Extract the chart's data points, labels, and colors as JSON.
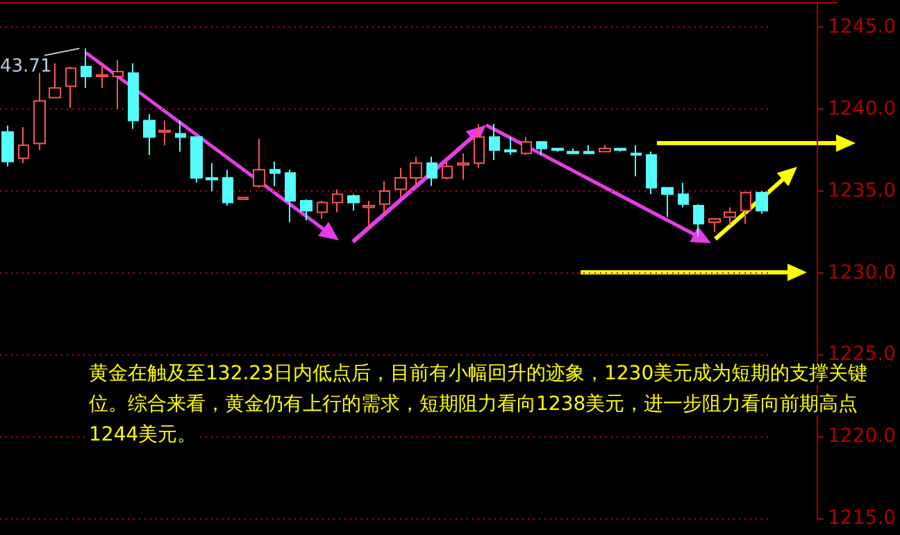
{
  "chart_data": {
    "type": "candlestick",
    "categories": [
      null,
      null,
      null,
      null,
      null,
      null,
      null,
      null,
      null,
      null,
      null,
      null,
      null,
      null,
      null,
      null,
      null,
      null,
      null,
      null,
      null,
      null,
      null,
      null,
      null,
      null,
      null,
      null,
      null,
      null,
      null,
      null,
      null,
      null,
      null,
      null,
      null,
      null,
      null,
      null,
      null,
      null,
      null,
      null,
      null,
      null,
      null,
      null,
      null
    ],
    "ohlc": [
      [
        1238.6,
        1239.0,
        1236.5,
        1236.8
      ],
      [
        1237.0,
        1238.9,
        1236.7,
        1237.8
      ],
      [
        1237.9,
        1242.2,
        1237.5,
        1240.5
      ],
      [
        1240.7,
        1242.8,
        1240.7,
        1241.3
      ],
      [
        1241.4,
        1242.6,
        1240.1,
        1242.5
      ],
      [
        1242.6,
        1243.71,
        1241.3,
        1242.0
      ],
      [
        1242.0,
        1242.8,
        1241.3,
        1242.1
      ],
      [
        1242.0,
        1243.0,
        1240.0,
        1242.3
      ],
      [
        1242.2,
        1242.8,
        1238.8,
        1239.3
      ],
      [
        1239.3,
        1239.7,
        1237.2,
        1238.3
      ],
      [
        1238.6,
        1239.3,
        1237.8,
        1238.7
      ],
      [
        1238.5,
        1239.3,
        1237.4,
        1238.3
      ],
      [
        1238.3,
        1238.3,
        1235.5,
        1235.8
      ],
      [
        1235.8,
        1236.7,
        1235.0,
        1235.7
      ],
      [
        1235.8,
        1236.3,
        1234.1,
        1234.3
      ],
      [
        1234.5,
        1234.6,
        1234.5,
        1234.6
      ],
      [
        1235.3,
        1238.2,
        1235.2,
        1236.3
      ],
      [
        1236.3,
        1236.8,
        1235.3,
        1236.1
      ],
      [
        1236.1,
        1236.3,
        1233.1,
        1234.4
      ],
      [
        1234.4,
        1234.5,
        1233.2,
        1233.8
      ],
      [
        1233.7,
        1234.4,
        1233.3,
        1234.3
      ],
      [
        1234.3,
        1235.1,
        1233.7,
        1234.8
      ],
      [
        1234.7,
        1234.8,
        1233.8,
        1234.3
      ],
      [
        1234.0,
        1234.4,
        1232.8,
        1234.1
      ],
      [
        1234.2,
        1235.6,
        1233.6,
        1235.0
      ],
      [
        1235.1,
        1236.4,
        1234.6,
        1235.8
      ],
      [
        1235.8,
        1237.1,
        1235.3,
        1236.7
      ],
      [
        1236.7,
        1237.1,
        1235.3,
        1235.8
      ],
      [
        1235.8,
        1236.8,
        1235.7,
        1236.5
      ],
      [
        1236.6,
        1237.3,
        1235.7,
        1236.7
      ],
      [
        1236.7,
        1239.1,
        1236.4,
        1238.3
      ],
      [
        1238.3,
        1239.1,
        1236.9,
        1237.5
      ],
      [
        1237.5,
        1238.3,
        1237.2,
        1237.4
      ],
      [
        1237.3,
        1238.3,
        1237.2,
        1238.0
      ],
      [
        1238.0,
        1238.0,
        1237.2,
        1237.6
      ],
      [
        1237.6,
        1237.6,
        1237.4,
        1237.5
      ],
      [
        1237.4,
        1237.6,
        1237.3,
        1237.3
      ],
      [
        1237.4,
        1237.8,
        1237.3,
        1237.3
      ],
      [
        1237.4,
        1237.8,
        1237.4,
        1237.6
      ],
      [
        1237.6,
        1237.6,
        1237.4,
        1237.5
      ],
      [
        1237.3,
        1237.8,
        1235.9,
        1237.2
      ],
      [
        1237.2,
        1237.4,
        1234.8,
        1235.2
      ],
      [
        1235.2,
        1235.2,
        1233.4,
        1234.8
      ],
      [
        1234.8,
        1235.5,
        1234.0,
        1234.2
      ],
      [
        1234.1,
        1234.2,
        1232.23,
        1233.0
      ],
      [
        1233.1,
        1233.3,
        1232.5,
        1233.3
      ],
      [
        1233.4,
        1234.0,
        1232.9,
        1233.7
      ],
      [
        1233.8,
        1234.9,
        1233.0,
        1234.9
      ],
      [
        1234.9,
        1235.0,
        1233.6,
        1233.8
      ]
    ],
    "colors": [
      "#54fcfc",
      "#ff5454",
      "#ff5454",
      "#ff5454",
      "#ff5454",
      "#54fcfc",
      "#ff5454",
      "#ff5454",
      "#54fcfc",
      "#54fcfc",
      "#ff5454",
      "#54fcfc",
      "#54fcfc",
      "#54fcfc",
      "#54fcfc",
      "#ff5454",
      "#ff5454",
      "#54fcfc",
      "#54fcfc",
      "#54fcfc",
      "#ff5454",
      "#ff5454",
      "#54fcfc",
      "#ff5454",
      "#ff5454",
      "#ff5454",
      "#ff5454",
      "#54fcfc",
      "#ff5454",
      "#ff5454",
      "#ff5454",
      "#54fcfc",
      "#54fcfc",
      "#ff5454",
      "#54fcfc",
      "#54fcfc",
      "#54fcfc",
      "#54fcfc",
      "#ff5454",
      "#54fcfc",
      "#54fcfc",
      "#54fcfc",
      "#54fcfc",
      "#54fcfc",
      "#54fcfc",
      "#ff5454",
      "#ff5454",
      "#ff5454",
      "#54fcfc"
    ],
    "ylim": [
      1215,
      1246.5
    ],
    "yticks": [
      {
        "value": 1215,
        "label": "1215.0"
      },
      {
        "value": 1220,
        "label": "1220.0"
      },
      {
        "value": 1225,
        "label": "1225.0"
      },
      {
        "value": 1230,
        "label": "1230.0"
      },
      {
        "value": 1235,
        "label": "1235.0"
      },
      {
        "value": 1240,
        "label": "1240.0"
      },
      {
        "value": 1245,
        "label": "1245.0"
      }
    ],
    "tick_labels": "y",
    "grid": "y",
    "annotations": [
      "43.71",
      "黄金在触及至132.23日内低点后，目前有小幅回升的迹象，1230美元成为短期的支撑关键位。综合来看，黄金仍有上行的需求，短期阻力看向1238美元，进一步阻力看向前期高点1244美元。"
    ]
  }
}
